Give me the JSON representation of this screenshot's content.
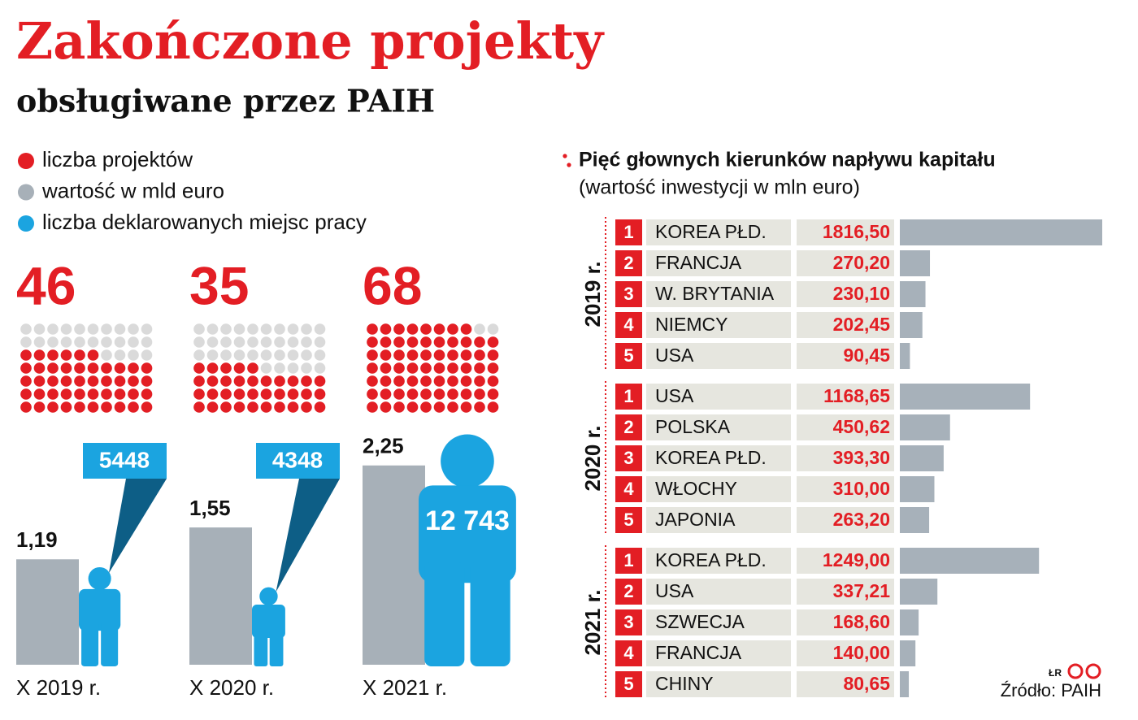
{
  "chart_data": [
    {
      "type": "pictogram",
      "title": "Zakończone projekty",
      "subtitle": "obsługiwane przez PAIH",
      "categories": [
        "X 2019 r.",
        "X 2020 r.",
        "X 2021 r."
      ],
      "series": [
        {
          "name": "liczba projektów",
          "color": "#e31e24",
          "values": [
            46,
            35,
            68
          ]
        },
        {
          "name": "wartość w mld euro",
          "color": "#a7b0b8",
          "values": [
            1.19,
            1.55,
            2.25
          ],
          "value_labels": [
            "1,19",
            "1,55",
            "2,25"
          ]
        },
        {
          "name": "liczba deklarowanych miejsc pracy",
          "color": "#1ba4e0",
          "values": [
            5448,
            4348,
            12743
          ],
          "value_labels": [
            "5448",
            "4348",
            "12 743"
          ]
        }
      ]
    },
    {
      "type": "ranked-bar",
      "title": "Pięć głownych kierunków napływu kapitału",
      "subtitle": "(wartość inwestycji w mln euro)",
      "ranks": [
        1,
        2,
        3,
        4,
        5
      ],
      "color": "#a7b1ba",
      "groups": [
        {
          "name": "2019 r.",
          "categories": [
            "KOREA PŁD.",
            "FRANCJA",
            "W. BRYTANIA",
            "NIEMCY",
            "USA"
          ],
          "values": [
            1816.5,
            270.2,
            230.1,
            202.45,
            90.45
          ],
          "value_labels": [
            "1816,50",
            "270,20",
            "230,10",
            "202,45",
            "90,45"
          ]
        },
        {
          "name": "2020 r.",
          "categories": [
            "USA",
            "POLSKA",
            "KOREA PŁD.",
            "WŁOCHY",
            "JAPONIA"
          ],
          "values": [
            1168.65,
            450.62,
            393.3,
            310.0,
            263.2
          ],
          "value_labels": [
            "1168,65",
            "450,62",
            "393,30",
            "310,00",
            "263,20"
          ]
        },
        {
          "name": "2021 r.",
          "categories": [
            "KOREA PŁD.",
            "USA",
            "SZWECJA",
            "FRANCJA",
            "CHINY"
          ],
          "values": [
            1249.0,
            337.21,
            168.6,
            140.0,
            80.65
          ],
          "value_labels": [
            "1249,00",
            "337,21",
            "168,60",
            "140,00",
            "80,65"
          ]
        }
      ],
      "source": "Źródło: PAIH",
      "credit": "ŁR"
    }
  ]
}
